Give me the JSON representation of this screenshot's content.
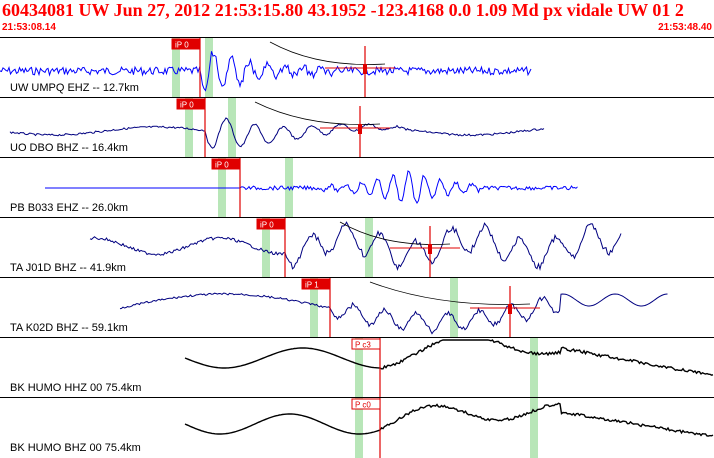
{
  "header": {
    "title": "60434081 UW Jun 27, 2012 21:53:15.80   43.1952 -123.4168  0.0 1.09 Md px vidale UW 01   2",
    "time_start": "21:53:08.14",
    "time_end": "21:53:48.40"
  },
  "colors": {
    "title": "#ff0000",
    "pick": "#e00000",
    "window": "#b8e6b8",
    "trace_blue": "#0000ff",
    "trace_navy": "#000080",
    "trace_black": "#000000"
  },
  "traces": [
    {
      "label": "UW UMPQ EHZ -- 12.7km",
      "pick": "iP 0",
      "color": "blue"
    },
    {
      "label": "UO DBO BHZ -- 16.4km",
      "pick": "iP 0",
      "color": "navy"
    },
    {
      "label": "PB B033 EHZ -- 26.0km",
      "pick": "iP 0",
      "color": "blue"
    },
    {
      "label": "TA J01D BHZ -- 41.9km",
      "pick": "iP 0",
      "color": "navy"
    },
    {
      "label": "TA K02D BHZ -- 59.1km",
      "pick": "iP 1",
      "color": "navy"
    },
    {
      "label": "BK HUMO HHZ 00 75.4km",
      "pick": "P c3",
      "color": "black"
    },
    {
      "label": "BK HUMO BHZ 00 75.4km",
      "pick": "P c0",
      "color": "black"
    }
  ]
}
